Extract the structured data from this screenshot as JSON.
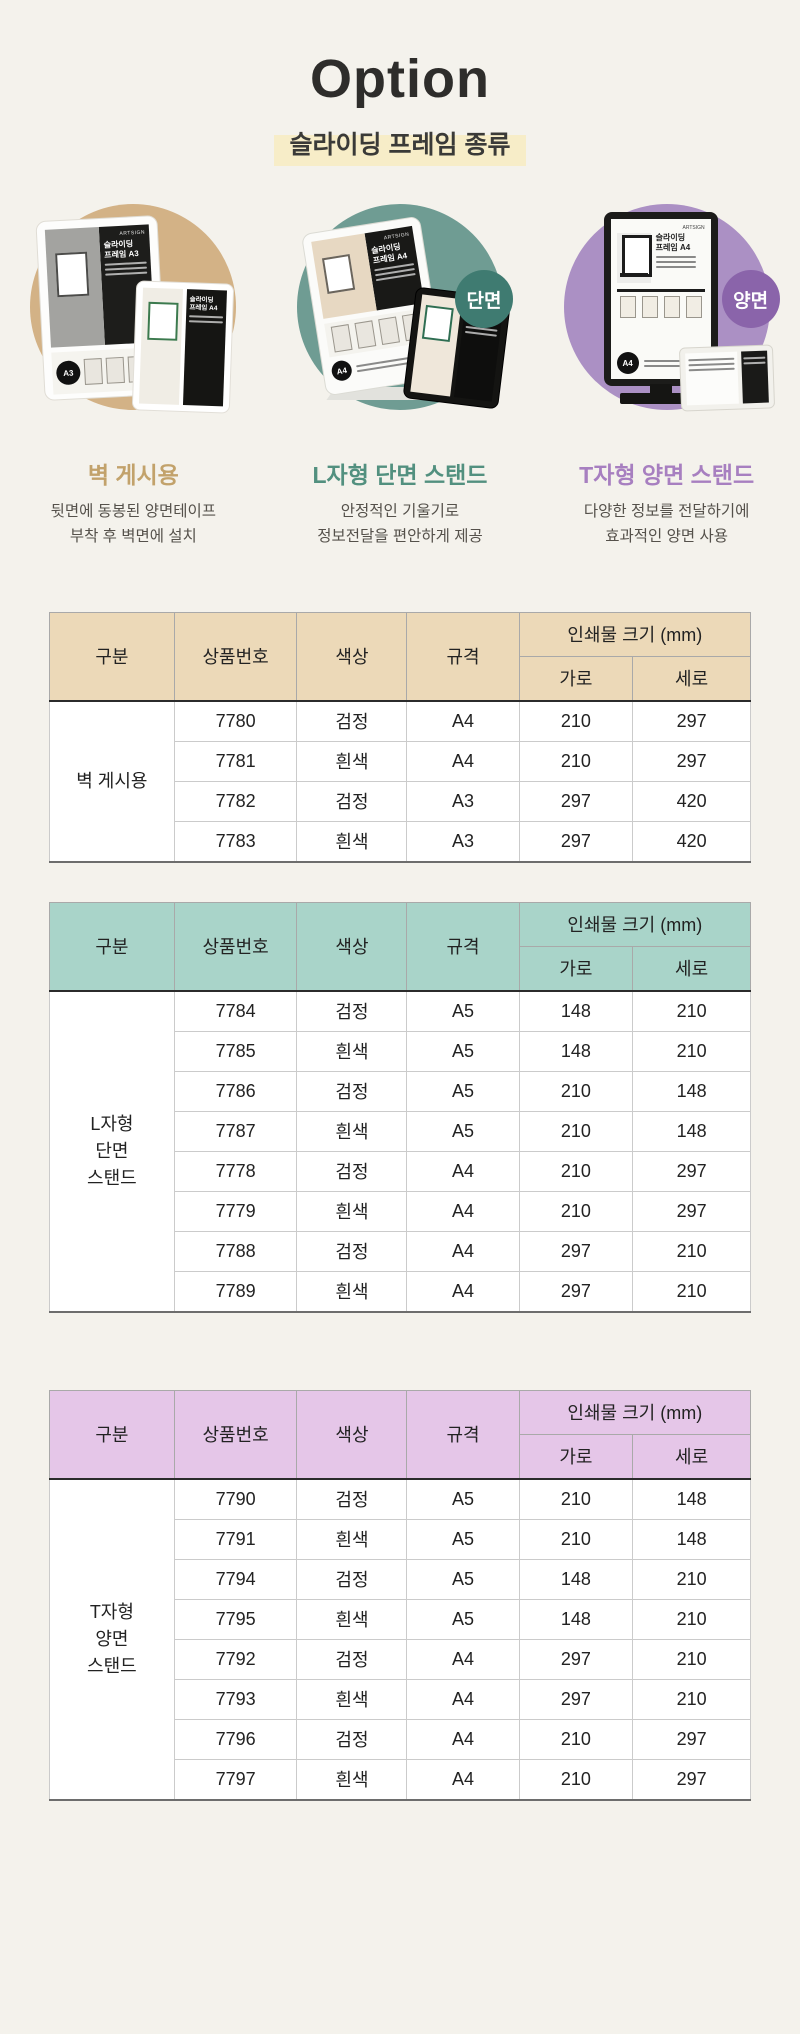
{
  "page": {
    "title": "Option",
    "subtitle": "슬라이딩 프레임 종류"
  },
  "features": [
    {
      "label": "벽 게시용",
      "desc": "뒷면에 동봉된 양면테이프\n부착 후 벽면에 설치"
    },
    {
      "badge": "단면",
      "label": "L자형 단면 스탠드",
      "desc": "안정적인 기울기로\n정보전달을 편안하게 제공"
    },
    {
      "badge": "양면",
      "label": "T자형 양면 스탠드",
      "desc": "다양한 정보를 전달하기에\n효과적인 양면 사용"
    }
  ],
  "product_images": {
    "wall": {
      "brand": "ARTSIGN",
      "poster_title": "슬라이딩\n프레임 A3",
      "size_badge": "A3",
      "poster_title_small": "슬라이딩\n프레임 A4",
      "size_badge_small": "A4"
    },
    "l_stand": {
      "brand": "ARTSIGN",
      "poster_title": "슬라이딩\n프레임 A4",
      "size_badge": "A4",
      "poster_title_small": "슬라이딩\n프레임 A5"
    },
    "t_stand": {
      "brand": "ARTSIGN",
      "poster_title": "슬라이딩\n프레임 A4",
      "size_badge": "A4"
    }
  },
  "table_columns": {
    "group": "구분",
    "product_no": "상품번호",
    "color": "색상",
    "size": "규격",
    "print_size": "인쇄물 크기 (mm)",
    "width": "가로",
    "height": "세로"
  },
  "tables": [
    {
      "group": "벽 게시용",
      "rows": [
        [
          "7780",
          "검정",
          "A4",
          "210",
          "297"
        ],
        [
          "7781",
          "흰색",
          "A4",
          "210",
          "297"
        ],
        [
          "7782",
          "검정",
          "A3",
          "297",
          "420"
        ],
        [
          "7783",
          "흰색",
          "A3",
          "297",
          "420"
        ]
      ]
    },
    {
      "group": "L자형\n단면\n스탠드",
      "rows": [
        [
          "7784",
          "검정",
          "A5",
          "148",
          "210"
        ],
        [
          "7785",
          "흰색",
          "A5",
          "148",
          "210"
        ],
        [
          "7786",
          "검정",
          "A5",
          "210",
          "148"
        ],
        [
          "7787",
          "흰색",
          "A5",
          "210",
          "148"
        ],
        [
          "7778",
          "검정",
          "A4",
          "210",
          "297"
        ],
        [
          "7779",
          "흰색",
          "A4",
          "210",
          "297"
        ],
        [
          "7788",
          "검정",
          "A4",
          "297",
          "210"
        ],
        [
          "7789",
          "흰색",
          "A4",
          "297",
          "210"
        ]
      ]
    },
    {
      "group": "T자형\n양면\n스탠드",
      "rows": [
        [
          "7790",
          "검정",
          "A5",
          "210",
          "148"
        ],
        [
          "7791",
          "흰색",
          "A5",
          "210",
          "148"
        ],
        [
          "7794",
          "검정",
          "A5",
          "148",
          "210"
        ],
        [
          "7795",
          "흰색",
          "A5",
          "148",
          "210"
        ],
        [
          "7792",
          "검정",
          "A4",
          "297",
          "210"
        ],
        [
          "7793",
          "흰색",
          "A4",
          "297",
          "210"
        ],
        [
          "7796",
          "검정",
          "A4",
          "210",
          "297"
        ],
        [
          "7797",
          "흰색",
          "A4",
          "210",
          "297"
        ]
      ]
    }
  ],
  "colors": {
    "page_bg": "#f4f2ec",
    "title_text": "#2e2d2b",
    "subtitle_highlight": "#f7edc8",
    "tan_circle": "#d3b286",
    "tan_accent": "#c2a26b",
    "teal_circle": "#6f9c93",
    "teal_badge": "#3f7b71",
    "teal_accent": "#52907f",
    "purple_circle": "#ab90c4",
    "purple_badge": "#8a64aa",
    "purple_accent": "#a77fc0",
    "table1_header_bg": "#ecd9b8",
    "table2_header_bg": "#a9d4c9",
    "table3_header_bg": "#e5c6e8",
    "desc_text": "#55514b",
    "table_text": "#222222"
  }
}
